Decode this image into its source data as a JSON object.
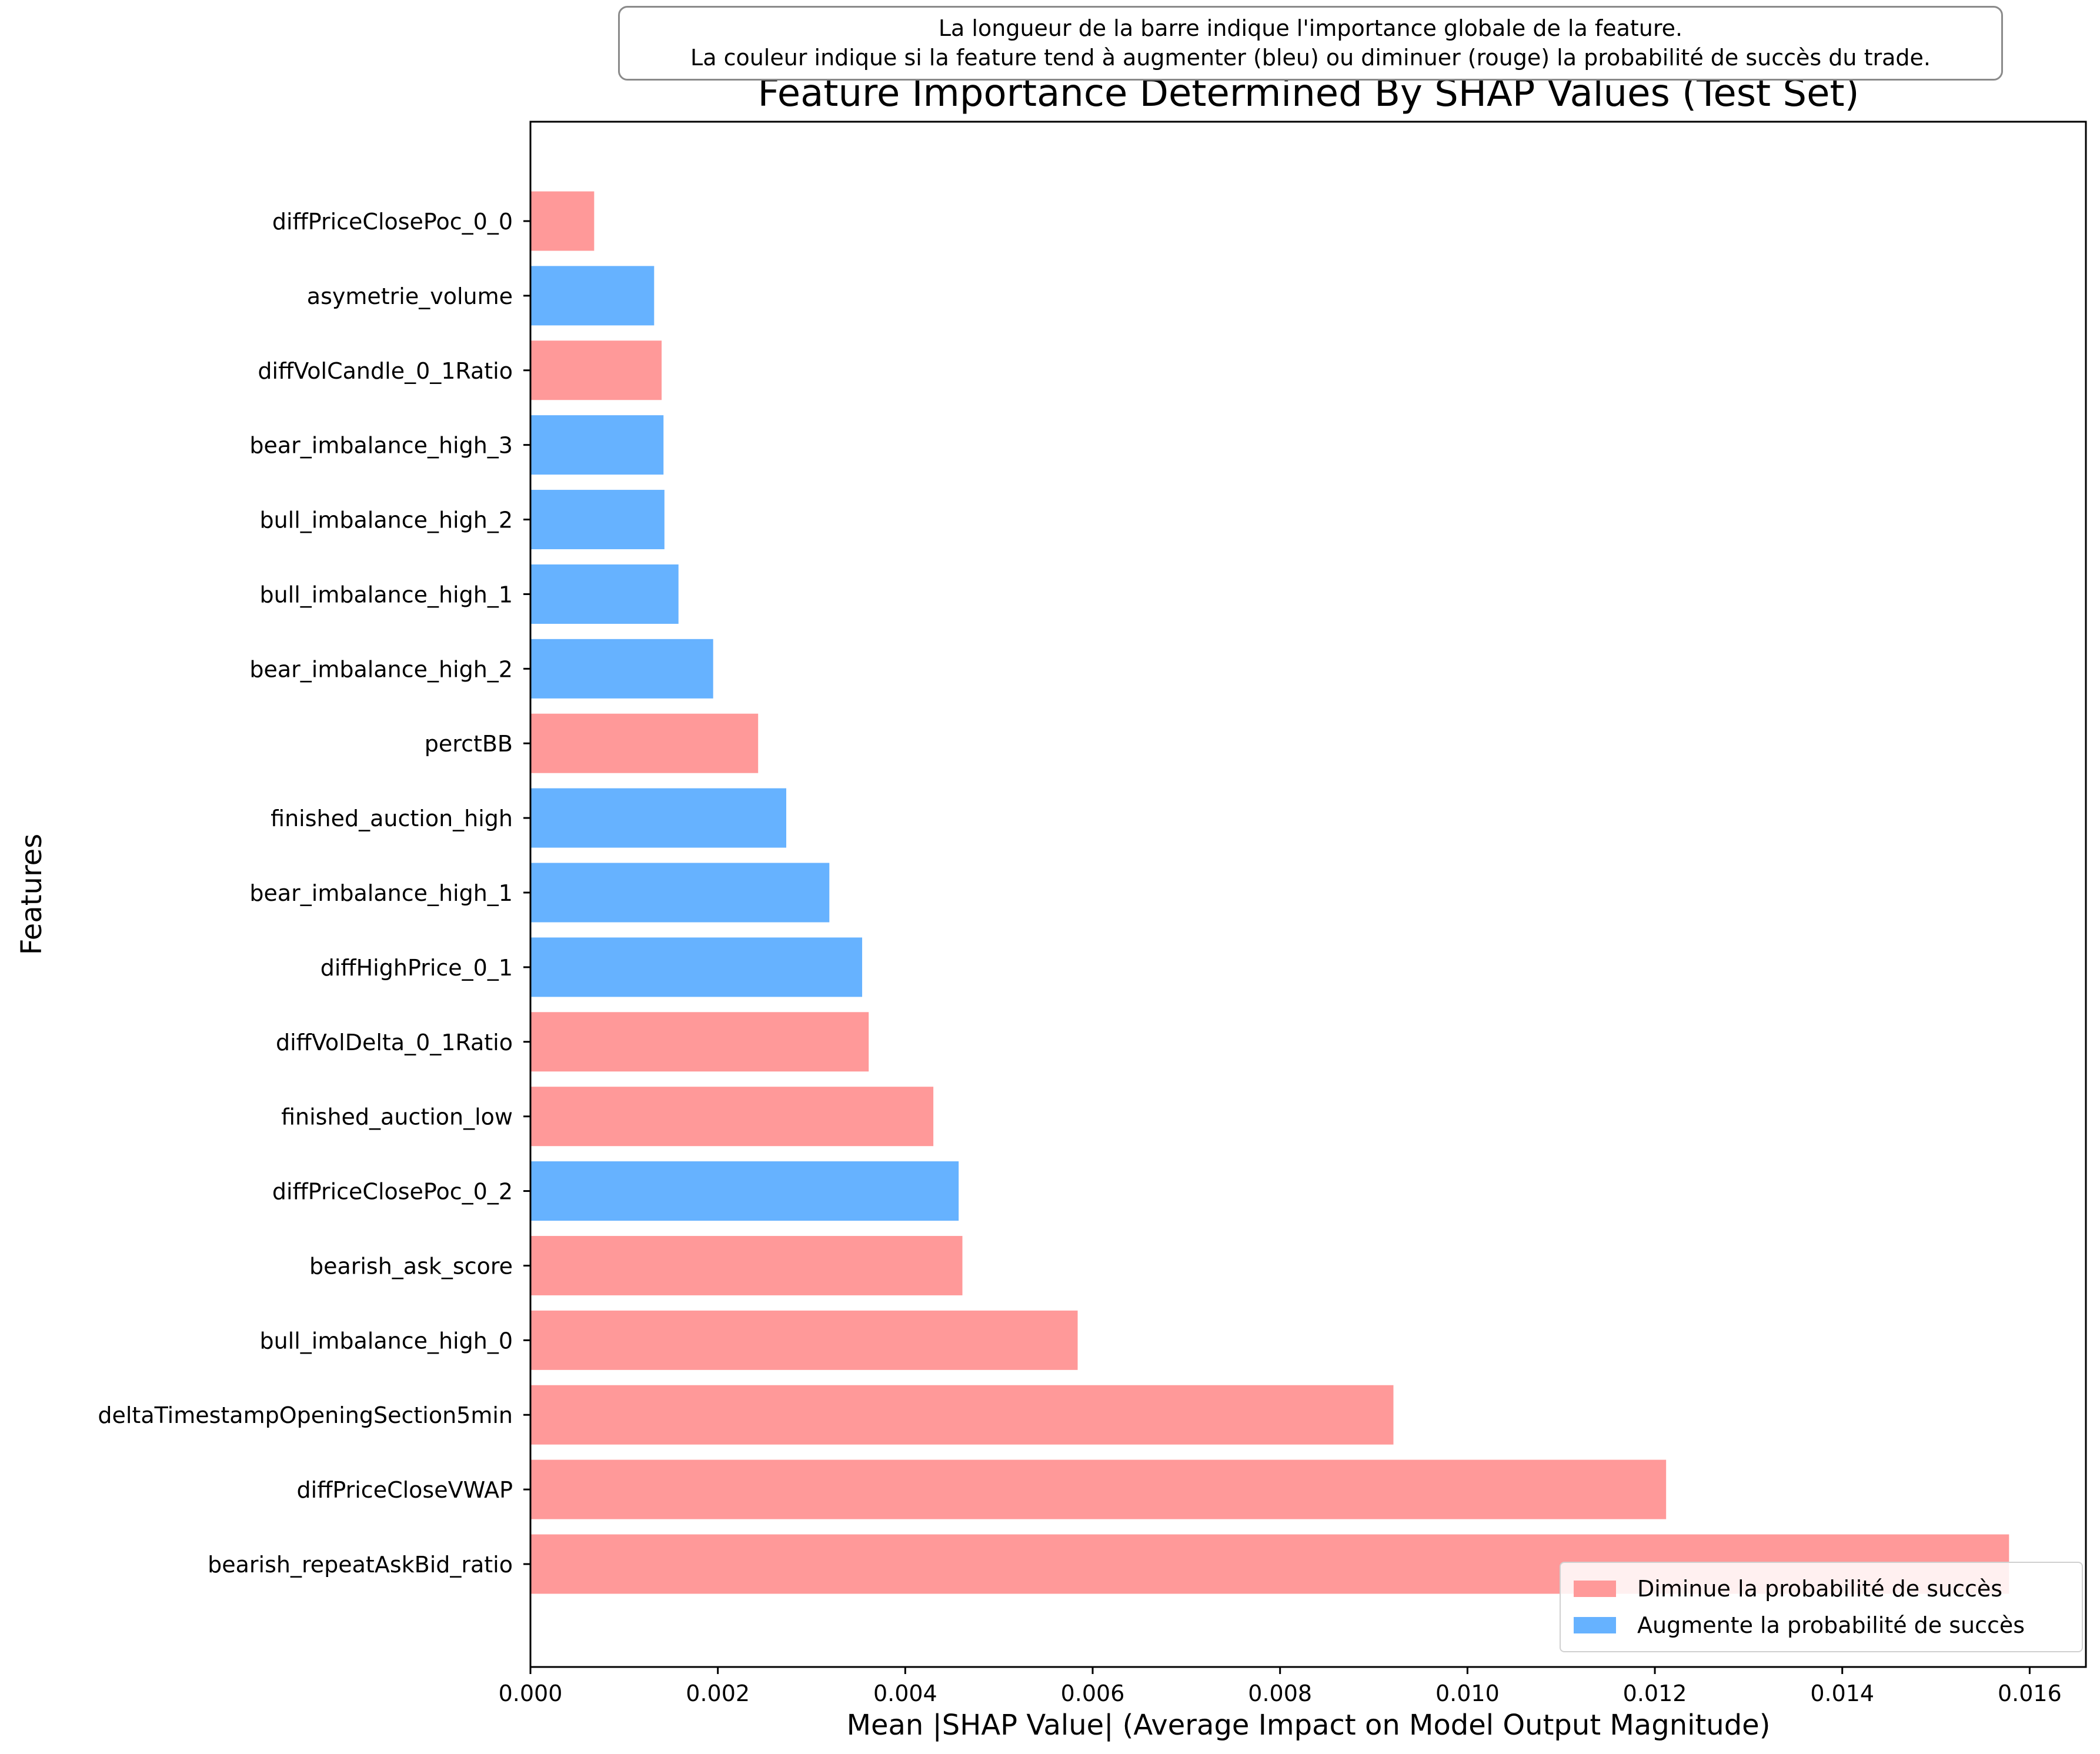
{
  "chart_data": {
    "type": "bar",
    "orientation": "horizontal",
    "title": "Feature Importance Determined By SHAP Values (Test Set)",
    "xlabel": "Mean |SHAP Value| (Average Impact on Model Output Magnitude)",
    "ylabel": "Features",
    "xlim": [
      0,
      0.0166
    ],
    "x_ticks": [
      "0.000",
      "0.002",
      "0.004",
      "0.006",
      "0.008",
      "0.010",
      "0.012",
      "0.014",
      "0.016"
    ],
    "x_tick_values": [
      0,
      0.002,
      0.004,
      0.006,
      0.008,
      0.01,
      0.012,
      0.014,
      0.016
    ],
    "annotation": [
      "La longueur de la barre indique l'importance globale de la feature.",
      "La couleur indique si la feature tend à augmenter (bleu) ou diminuer (rouge) la probabilité de succès du trade."
    ],
    "legend_position": "lower-right",
    "legend": [
      {
        "label": "Diminue la probabilité de succès",
        "color": "#ff9999"
      },
      {
        "label": "Augmente la probabilité de succès",
        "color": "#66b2ff"
      }
    ],
    "colors": {
      "decrease": "#ff9999",
      "increase": "#66b2ff"
    },
    "bars": [
      {
        "feature": "diffPriceClosePoc_0_0",
        "value": 0.00068,
        "effect": "decrease"
      },
      {
        "feature": "asymetrie_volume",
        "value": 0.00132,
        "effect": "increase"
      },
      {
        "feature": "diffVolCandle_0_1Ratio",
        "value": 0.0014,
        "effect": "decrease"
      },
      {
        "feature": "bear_imbalance_high_3",
        "value": 0.00142,
        "effect": "increase"
      },
      {
        "feature": "bull_imbalance_high_2",
        "value": 0.00143,
        "effect": "increase"
      },
      {
        "feature": "bull_imbalance_high_1",
        "value": 0.00158,
        "effect": "increase"
      },
      {
        "feature": "bear_imbalance_high_2",
        "value": 0.00195,
        "effect": "increase"
      },
      {
        "feature": "perctBB",
        "value": 0.00243,
        "effect": "decrease"
      },
      {
        "feature": "finished_auction_high",
        "value": 0.00273,
        "effect": "increase"
      },
      {
        "feature": "bear_imbalance_high_1",
        "value": 0.00319,
        "effect": "increase"
      },
      {
        "feature": "diffHighPrice_0_1",
        "value": 0.00354,
        "effect": "increase"
      },
      {
        "feature": "diffVolDelta_0_1Ratio",
        "value": 0.00361,
        "effect": "decrease"
      },
      {
        "feature": "finished_auction_low",
        "value": 0.0043,
        "effect": "decrease"
      },
      {
        "feature": "diffPriceClosePoc_0_2",
        "value": 0.00457,
        "effect": "increase"
      },
      {
        "feature": "bearish_ask_score",
        "value": 0.00461,
        "effect": "decrease"
      },
      {
        "feature": "bull_imbalance_high_0",
        "value": 0.00584,
        "effect": "decrease"
      },
      {
        "feature": "deltaTimestampOpeningSection5min",
        "value": 0.00921,
        "effect": "decrease"
      },
      {
        "feature": "diffPriceCloseVWAP",
        "value": 0.01212,
        "effect": "decrease"
      },
      {
        "feature": "bearish_repeatAskBid_ratio",
        "value": 0.01578,
        "effect": "decrease"
      }
    ]
  }
}
